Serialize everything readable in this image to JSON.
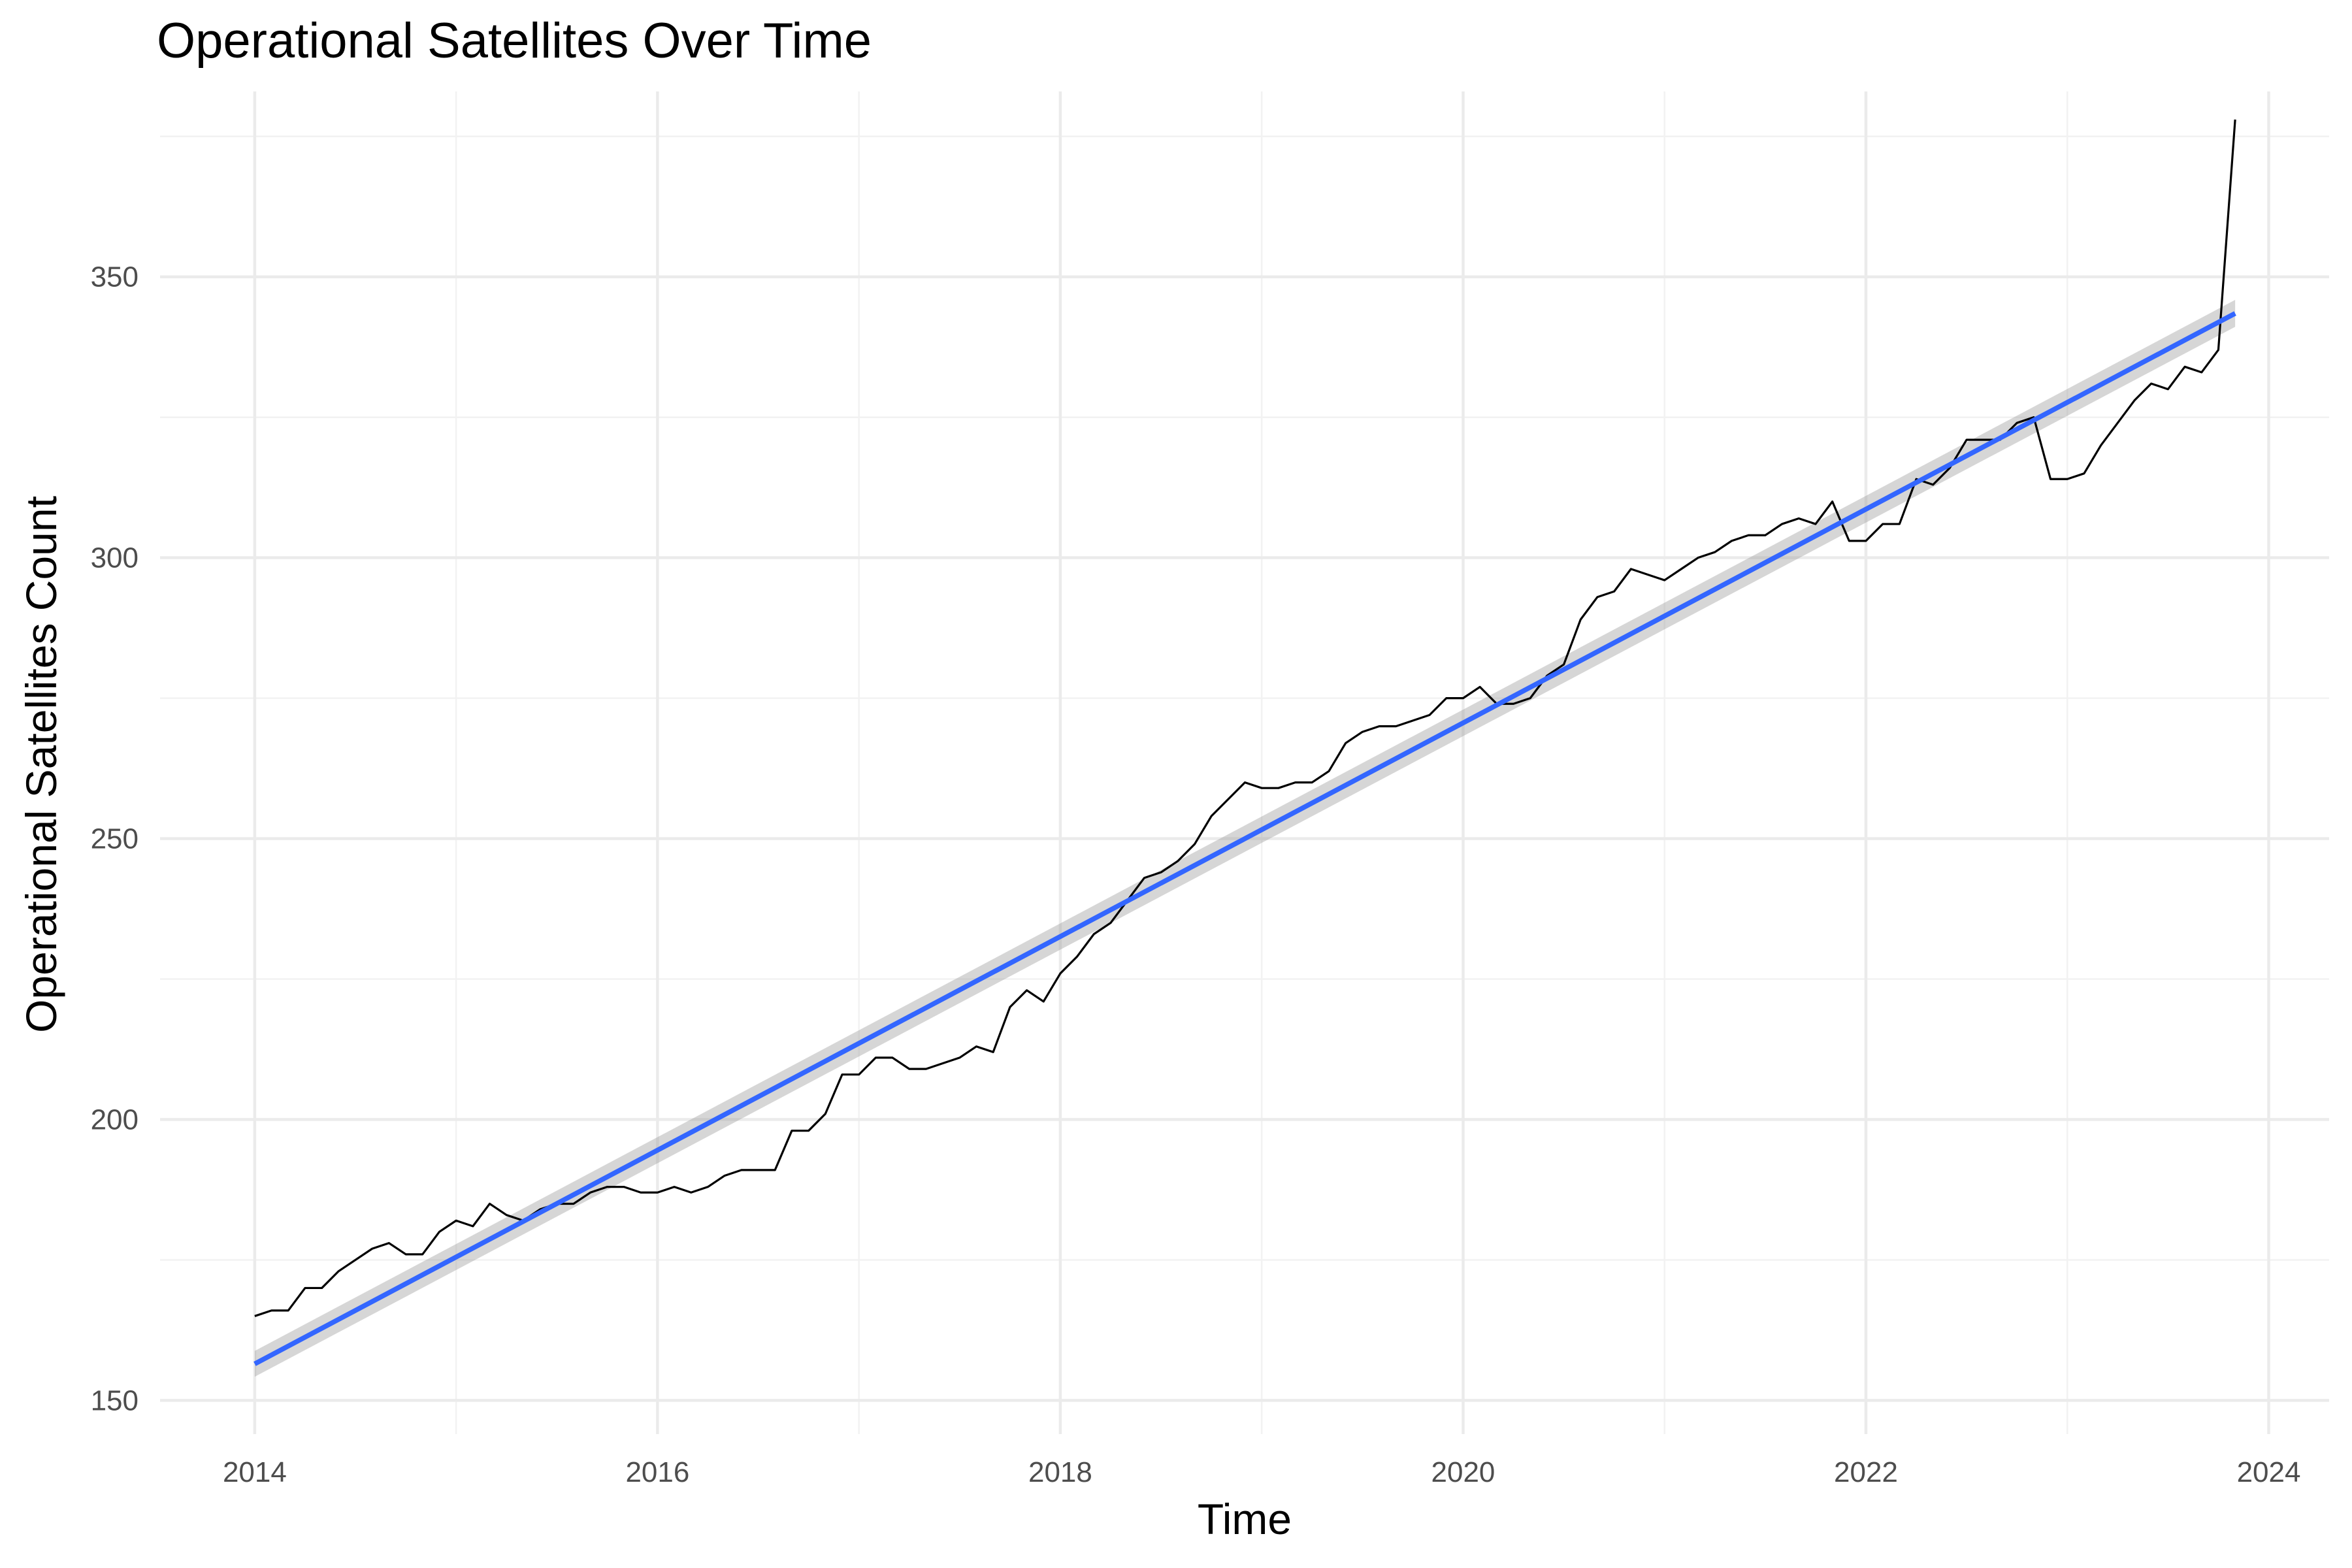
{
  "chart_data": {
    "type": "line",
    "title": "Operational Satellites Over Time",
    "xlabel": "Time",
    "ylabel": "Operational Satellites Count",
    "xlim": [
      2013.53,
      2024.3
    ],
    "ylim": [
      144,
      383
    ],
    "x_ticks": [
      2014,
      2016,
      2018,
      2020,
      2022,
      2024
    ],
    "x_tick_labels": [
      "2014",
      "2016",
      "2018",
      "2020",
      "2022",
      "2024"
    ],
    "y_ticks": [
      150,
      200,
      250,
      300,
      350
    ],
    "y_tick_labels": [
      "150",
      "200",
      "250",
      "300",
      "350"
    ],
    "grid": true,
    "legend": "none",
    "series": [
      {
        "kind": "line",
        "color": "#000000",
        "x_start": "2014-01",
        "x_step": "1 month",
        "values": [
          165,
          166,
          166,
          170,
          170,
          173,
          175,
          177,
          178,
          176,
          176,
          180,
          182,
          181,
          185,
          183,
          182,
          184,
          185,
          185,
          187,
          188,
          188,
          187,
          187,
          188,
          187,
          188,
          190,
          191,
          191,
          191,
          198,
          198,
          201,
          208,
          208,
          211,
          211,
          209,
          209,
          210,
          211,
          213,
          212,
          220,
          223,
          221,
          226,
          229,
          233,
          235,
          239,
          243,
          244,
          246,
          249,
          254,
          257,
          260,
          259,
          259,
          260,
          260,
          262,
          267,
          269,
          270,
          270,
          271,
          272,
          275,
          275,
          277,
          274,
          274,
          275,
          279,
          281,
          289,
          293,
          294,
          298,
          297,
          296,
          298,
          300,
          301,
          303,
          304,
          304,
          306,
          307,
          306,
          310,
          303,
          303,
          306,
          306,
          314,
          313,
          316,
          321,
          321,
          321,
          324,
          325,
          314,
          314,
          315,
          320,
          324,
          328,
          331,
          330,
          334,
          333,
          337,
          378
        ]
      },
      {
        "kind": "linear-trend",
        "color": "#3366ff",
        "x": [
          "2014-01",
          "2023-11"
        ],
        "y": [
          156.5,
          343.5
        ],
        "ci_lower": [
          154.2,
          341.1
        ],
        "ci_upper": [
          158.8,
          345.9
        ],
        "band_color": "#999999"
      }
    ]
  }
}
